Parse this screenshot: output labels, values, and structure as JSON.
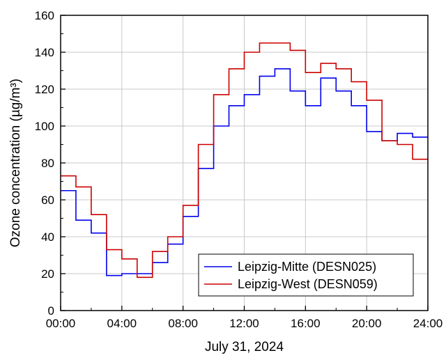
{
  "chart_data": {
    "type": "line",
    "step": true,
    "title": "",
    "xlabel": "July 31, 2024",
    "ylabel": "Ozone concentration (µg/m³)",
    "xlim": [
      "00:00",
      "24:00"
    ],
    "ylim": [
      0,
      160
    ],
    "x_ticks": [
      "00:00",
      "04:00",
      "08:00",
      "12:00",
      "16:00",
      "20:00",
      "24:00"
    ],
    "y_ticks": [
      0,
      20,
      40,
      60,
      80,
      100,
      120,
      140,
      160
    ],
    "grid": true,
    "legend_position": "bottom-right",
    "x": [
      "00:00",
      "01:00",
      "02:00",
      "03:00",
      "04:00",
      "05:00",
      "06:00",
      "07:00",
      "08:00",
      "09:00",
      "10:00",
      "11:00",
      "12:00",
      "13:00",
      "14:00",
      "15:00",
      "16:00",
      "17:00",
      "18:00",
      "19:00",
      "20:00",
      "21:00",
      "22:00",
      "23:00"
    ],
    "series": [
      {
        "name": "Leipzig-Mitte (DESN025)",
        "color": "#0000ee",
        "values": [
          65,
          49,
          42,
          19,
          20,
          20,
          26,
          36,
          51,
          77,
          100,
          111,
          117,
          127,
          131,
          119,
          111,
          126,
          119,
          111,
          97,
          92,
          96,
          94
        ]
      },
      {
        "name": "Leipzig-West (DESN059)",
        "color": "#cc0000",
        "values": [
          73,
          67,
          52,
          33,
          28,
          18,
          32,
          40,
          57,
          90,
          117,
          131,
          140,
          145,
          145,
          141,
          129,
          134,
          131,
          124,
          114,
          92,
          90,
          82
        ]
      }
    ]
  }
}
